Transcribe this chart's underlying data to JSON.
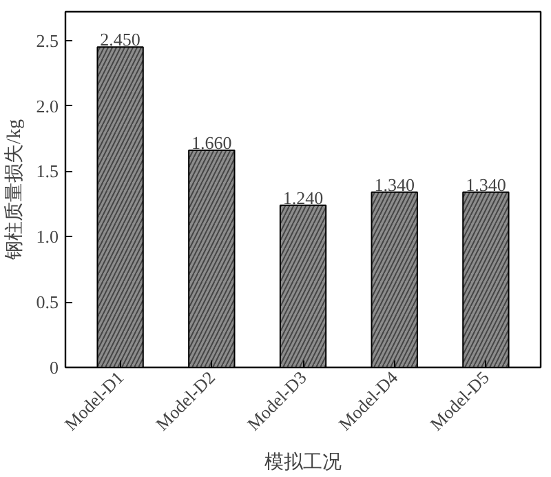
{
  "chart_data": {
    "type": "bar",
    "xlabel": "模拟工况",
    "ylabel": "钢柱质量损失/kg",
    "categories": [
      "Model-D1",
      "Model-D2",
      "Model-D3",
      "Model-D4",
      "Model-D5"
    ],
    "values": [
      2.45,
      1.66,
      1.24,
      1.34,
      1.34
    ],
    "value_labels": [
      "2.450",
      "1.660",
      "1.240",
      "1.340",
      "1.340"
    ],
    "color": "#8c8c8c",
    "ylim": [
      0,
      2.72
    ],
    "yticks": [
      0,
      {
        "value": 0.5,
        "label": "0.5"
      },
      {
        "value": 1,
        "label": "1.0"
      },
      {
        "value": 1.5,
        "label": "1.5"
      },
      {
        "value": 2,
        "label": "2.0"
      },
      {
        "value": 2.5,
        "label": "2.5"
      }
    ],
    "grid": false
  }
}
